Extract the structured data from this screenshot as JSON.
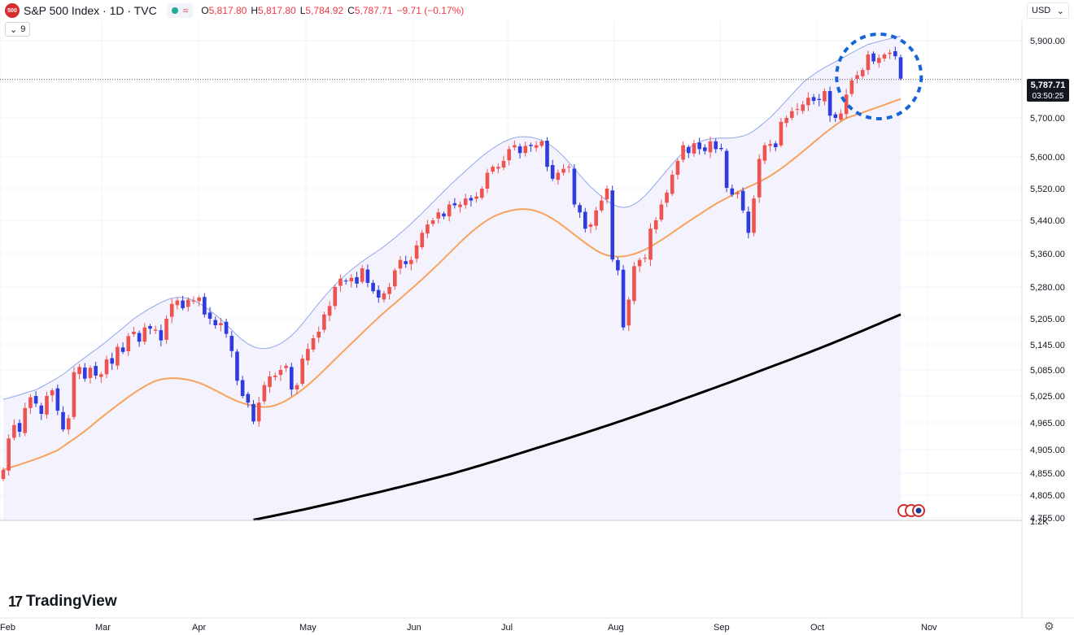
{
  "header": {
    "symbol_badge": "500",
    "title": "S&P 500 Index · 1D · TVC",
    "chip_symbol": "≈",
    "ohlc": [
      {
        "label": "O",
        "value": "5,817.80"
      },
      {
        "label": "H",
        "value": "5,817.80"
      },
      {
        "label": "L",
        "value": "5,784.92"
      },
      {
        "label": "C",
        "value": "5,787.71"
      },
      {
        "label": "",
        "value": "−9.71 (−0.17%)"
      }
    ],
    "indicator_count": "9",
    "currency": "USD"
  },
  "price_scale": {
    "ticks": [
      "5,900.00",
      "5,780.00",
      "5,700.00",
      "5,600.00",
      "5,520.00",
      "5,440.00",
      "5,360.00",
      "5,280.00",
      "5,205.00",
      "5,145.00",
      "5,085.00",
      "5,025.00",
      "4,965.00",
      "4,905.00",
      "4,855.00",
      "4,805.00",
      "4,755.00"
    ],
    "last_price": "5,787.71",
    "countdown": "03:50:25",
    "volume_scale_label": "1.2K"
  },
  "time_scale": {
    "labels": [
      "Feb",
      "Mar",
      "Apr",
      "May",
      "Jun",
      "Jul",
      "Aug",
      "Sep",
      "Oct",
      "Nov"
    ]
  },
  "branding": {
    "logo_mark": "17",
    "logo_text": "TradingView"
  },
  "colors": {
    "up": "#ef5350",
    "down": "#2f3bde",
    "ma50": "#f7a35c",
    "ma200": "#000000",
    "band_upper": "#8fa9e8",
    "band_fill": "#f3f2fd",
    "highlight_circle": "#1565d8"
  },
  "chart_data": {
    "type": "candlestick",
    "scale": "linear",
    "x": {
      "first_date": "2024-02-01",
      "last_date": "2024-10-24",
      "months": [
        "Feb",
        "Mar",
        "Apr",
        "May",
        "Jun",
        "Jul",
        "Aug",
        "Sep",
        "Oct",
        "Nov"
      ]
    },
    "y": {
      "min": 4755,
      "max": 5940,
      "ticks": [
        5900,
        5780,
        5700,
        5600,
        5520,
        5440,
        5360,
        5280,
        5205,
        5145,
        5085,
        5025,
        4965,
        4905,
        4855,
        4805,
        4755
      ]
    },
    "last_close": 5787.71,
    "closes": [
      4862,
      4930,
      4960,
      4945,
      4998,
      5022,
      5008,
      4985,
      5025,
      5038,
      4992,
      4950,
      4975,
      5080,
      5092,
      5065,
      5090,
      5072,
      5075,
      5110,
      5100,
      5140,
      5128,
      5165,
      5175,
      5152,
      5185,
      5182,
      5180,
      5155,
      5205,
      5240,
      5248,
      5230,
      5250,
      5248,
      5255,
      5215,
      5205,
      5190,
      5195,
      5170,
      5130,
      5060,
      5025,
      5010,
      4968,
      5010,
      5050,
      5070,
      5072,
      5085,
      5095,
      5040,
      5050,
      5112,
      5135,
      5160,
      5175,
      5215,
      5235,
      5280,
      5300,
      5295,
      5302,
      5288,
      5325,
      5290,
      5270,
      5255,
      5265,
      5280,
      5320,
      5345,
      5335,
      5345,
      5380,
      5410,
      5430,
      5440,
      5460,
      5450,
      5480,
      5478,
      5480,
      5495,
      5490,
      5500,
      5520,
      5560,
      5575,
      5575,
      5590,
      5620,
      5630,
      5610,
      5628,
      5628,
      5630,
      5640,
      5575,
      5545,
      5560,
      5570,
      5575,
      5480,
      5460,
      5420,
      5430,
      5465,
      5490,
      5520,
      5346,
      5320,
      5185,
      5250,
      5330,
      5345,
      5350,
      5420,
      5440,
      5480,
      5510,
      5555,
      5590,
      5630,
      5610,
      5635,
      5620,
      5615,
      5640,
      5620,
      5620,
      5522,
      5505,
      5510,
      5465,
      5410,
      5495,
      5595,
      5630,
      5633,
      5625,
      5690,
      5700,
      5715,
      5720,
      5730,
      5745,
      5738,
      5740,
      5760,
      5705,
      5700,
      5710,
      5752,
      5785,
      5800,
      5815,
      5860,
      5840,
      5850,
      5860,
      5865,
      5855,
      5790
    ],
    "series": [
      {
        "name": "",
        "description": "50-day moving average",
        "start": 4760,
        "end": 5625
      },
      {
        "name": "",
        "description": "200-day moving average",
        "start": 4670,
        "end": 5215
      },
      {
        "name": "",
        "description": "upper band",
        "start": 4885,
        "end": 5935
      }
    ],
    "highlight": "dashed circle around the last ~9 candles (Oct highs)"
  }
}
